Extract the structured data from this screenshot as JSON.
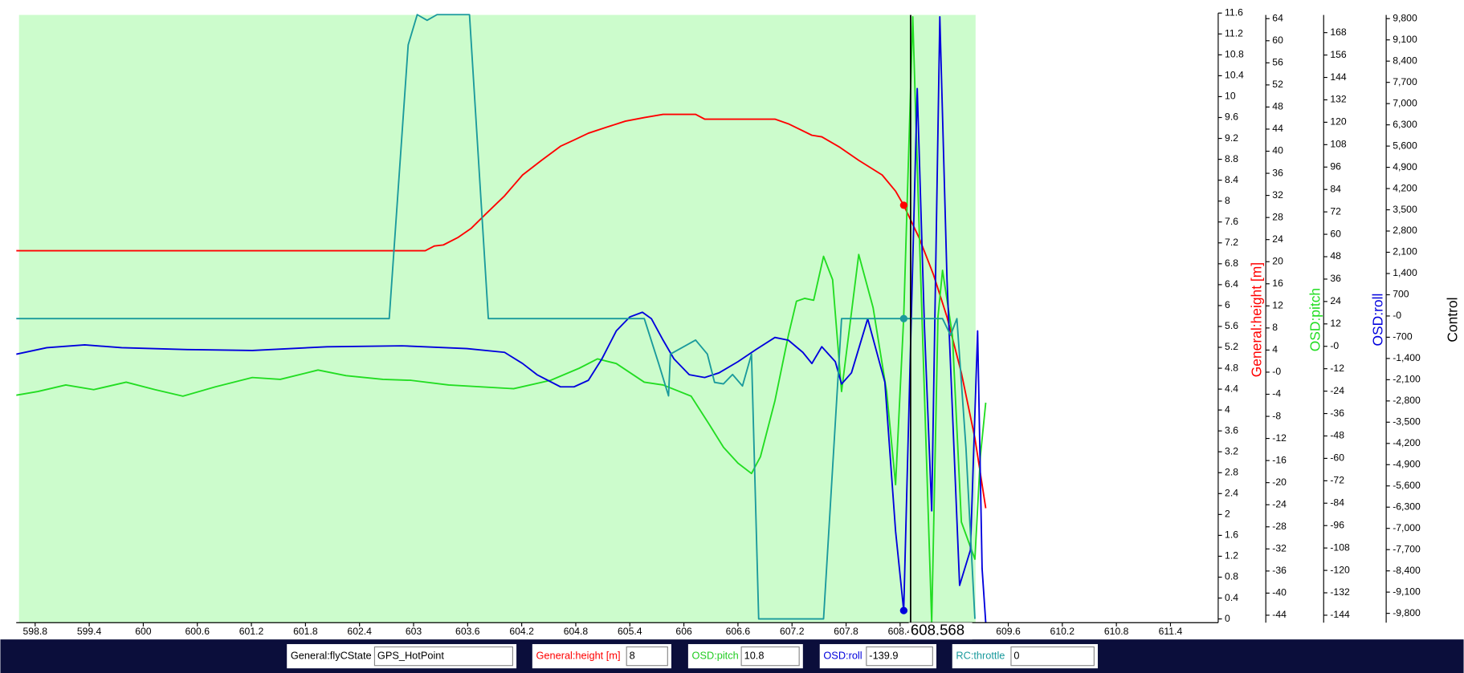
{
  "chart_data": {
    "type": "line",
    "xlim": [
      598.59,
      611.93
    ],
    "xticks": [
      598.8,
      599.4,
      600,
      600.6,
      601.2,
      601.8,
      602.4,
      603,
      603.6,
      604.2,
      604.8,
      605.4,
      606,
      606.6,
      607.2,
      607.8,
      608.4,
      609,
      609.6,
      610.2,
      610.8,
      611.4
    ],
    "cursor": 608.568,
    "axes": [
      {
        "color": "#000000",
        "lim": [
          0,
          11.6
        ],
        "ticks": [
          0,
          0.4,
          0.8,
          1.2,
          1.6,
          2,
          2.4,
          2.8,
          3.2,
          3.6,
          4,
          4.4,
          4.8,
          5.2,
          5.6,
          6,
          6.4,
          6.8,
          7.2,
          7.6,
          8,
          8.4,
          8.8,
          9.2,
          9.6,
          10,
          10.4,
          10.8,
          11.2,
          11.6
        ]
      },
      {
        "label": "General:height [m]",
        "color": "#ff0000",
        "lim": [
          -44,
          64
        ],
        "ticks": [
          -44,
          -40,
          -36,
          -32,
          -28,
          -24,
          -20,
          -16,
          -12,
          -8,
          -4,
          {
            "value": 0,
            "label": "-0"
          },
          4,
          8,
          12,
          16,
          20,
          24,
          28,
          32,
          36,
          40,
          44,
          48,
          52,
          56,
          60,
          64
        ]
      },
      {
        "label": "OSD:pitch",
        "color": "#22dd22",
        "lim": [
          -144,
          168
        ],
        "ticks": [
          -144,
          -132,
          -120,
          -108,
          -96,
          -84,
          -72,
          -60,
          -48,
          -36,
          -24,
          -12,
          {
            "value": 0,
            "label": "-0"
          },
          12,
          24,
          36,
          48,
          60,
          72,
          84,
          96,
          108,
          120,
          132,
          144,
          156,
          168
        ]
      },
      {
        "label": "OSD:roll",
        "color": "#0000dd",
        "lim": [
          -9800,
          9800
        ],
        "ticks": [
          {
            "value": -9800,
            "label": "-9,800"
          },
          {
            "value": -9100,
            "label": "-9,100"
          },
          {
            "value": -8400,
            "label": "-8,400"
          },
          {
            "value": -7700,
            "label": "-7,700"
          },
          {
            "value": -7000,
            "label": "-7,000"
          },
          {
            "value": -6300,
            "label": "-6,300"
          },
          {
            "value": -5600,
            "label": "-5,600"
          },
          {
            "value": -4900,
            "label": "-4,900"
          },
          {
            "value": -4200,
            "label": "-4,200"
          },
          {
            "value": -3500,
            "label": "-3,500"
          },
          {
            "value": -2800,
            "label": "-2,800"
          },
          {
            "value": -2100,
            "label": "-2,100"
          },
          {
            "value": -1400,
            "label": "-1,400"
          },
          -700,
          {
            "value": 0,
            "label": "-0"
          },
          700,
          {
            "value": 1400,
            "label": "1,400"
          },
          {
            "value": 2100,
            "label": "2,100"
          },
          {
            "value": 2800,
            "label": "2,800"
          },
          {
            "value": 3500,
            "label": "3,500"
          },
          {
            "value": 4200,
            "label": "4,200"
          },
          {
            "value": 4900,
            "label": "4,900"
          },
          {
            "value": 5600,
            "label": "5,600"
          },
          {
            "value": 6300,
            "label": "6,300"
          },
          {
            "value": 7000,
            "label": "7,000"
          },
          {
            "value": 7700,
            "label": "7,700"
          },
          {
            "value": 8400,
            "label": "8,400"
          },
          {
            "value": 9100,
            "label": "9,100"
          },
          {
            "value": 9800,
            "label": "9,800"
          }
        ]
      },
      {
        "label": "Control",
        "color": "#000000"
      }
    ],
    "series": [
      {
        "name": "General:height [m]",
        "color": "#ff0000",
        "axis": 0,
        "marker": true,
        "readout": 8,
        "x": [
          598.59,
          603.13,
          603.23,
          603.33,
          603.49,
          603.64,
          603.8,
          604.01,
          604.21,
          604.42,
          604.63,
          604.78,
          604.94,
          605.15,
          605.35,
          605.56,
          605.77,
          606.13,
          606.23,
          607.01,
          607.16,
          607.42,
          607.53,
          607.73,
          607.94,
          608.2,
          608.35,
          608.44,
          608.61,
          608.77,
          608.92,
          609.08,
          609.23,
          609.35
        ],
        "values": [
          7.05,
          7.05,
          7.14,
          7.16,
          7.3,
          7.48,
          7.75,
          8.1,
          8.5,
          8.78,
          9.05,
          9.17,
          9.3,
          9.42,
          9.53,
          9.6,
          9.66,
          9.66,
          9.57,
          9.57,
          9.48,
          9.26,
          9.23,
          9.03,
          8.78,
          8.5,
          8.19,
          7.92,
          7.3,
          6.59,
          5.78,
          4.71,
          3.46,
          2.12
        ]
      },
      {
        "name": "OSD:pitch",
        "color": "#22dd22",
        "axis": 2,
        "marker": false,
        "readout": 10.8,
        "x": [
          598.59,
          598.83,
          599.14,
          599.45,
          599.81,
          600.13,
          600.44,
          600.8,
          601.21,
          601.52,
          601.94,
          602.25,
          602.66,
          602.97,
          603.39,
          604.11,
          604.52,
          604.84,
          605.04,
          605.25,
          605.56,
          605.77,
          606.08,
          606.28,
          606.44,
          606.6,
          606.75,
          606.85,
          607.01,
          607.16,
          607.25,
          607.34,
          607.44,
          607.55,
          607.65,
          607.75,
          607.94,
          608.1,
          608.25,
          608.35,
          608.44,
          608.54,
          608.61,
          608.75,
          608.82,
          608.87,
          608.98,
          609.08,
          609.23,
          609.29,
          609.35
        ],
        "values": [
          -26.2,
          -24.2,
          -20.7,
          -23.2,
          -19.2,
          -23.2,
          -26.7,
          -21.7,
          -16.7,
          -17.7,
          -12.7,
          -15.7,
          -17.7,
          -18.2,
          -20.7,
          -22.7,
          -18.2,
          -11.7,
          -6.7,
          -9.2,
          -19.2,
          -20.7,
          -26.7,
          -41.7,
          -54.1,
          -62.6,
          -68.1,
          -59.1,
          -29.2,
          5.8,
          24.2,
          25.7,
          24.7,
          48.2,
          35.7,
          -24.2,
          49.2,
          20.7,
          -24.2,
          -74.1,
          15.7,
          176.5,
          65.7,
          -148,
          15.7,
          40.7,
          5.8,
          -94.1,
          -114,
          -59.1,
          -30.2
        ]
      },
      {
        "name": "OSD:roll",
        "color": "#0000dd",
        "axis": 3,
        "marker": true,
        "readout": -139.9,
        "x": [
          598.59,
          598.93,
          599.35,
          599.76,
          600.49,
          601.21,
          602.04,
          602.87,
          603.59,
          604.01,
          604.21,
          604.37,
          604.63,
          604.78,
          604.94,
          605.09,
          605.25,
          605.4,
          605.54,
          605.64,
          605.77,
          605.89,
          606.06,
          606.23,
          606.39,
          606.6,
          606.8,
          607.01,
          607.16,
          607.32,
          607.42,
          607.53,
          607.68,
          607.75,
          607.86,
          608.04,
          608.23,
          608.35,
          608.44,
          608.59,
          608.67,
          608.75,
          608.84,
          608.92,
          609.06,
          609.18,
          609.26,
          609.31,
          609.35
        ],
        "values": [
          -1259,
          -1044,
          -952,
          -1044,
          -1106,
          -1136,
          -1013,
          -983,
          -1075,
          -1198,
          -1566,
          -1935,
          -2334,
          -2334,
          -2119,
          -1413,
          -491,
          -30,
          123,
          -92,
          -799,
          -1413,
          -1935,
          -2027,
          -1874,
          -1505,
          -1106,
          -706,
          -799,
          -1198,
          -1566,
          -1013,
          -1505,
          -2242,
          -1874,
          -92,
          -2181,
          -7096,
          -9707,
          7496,
          -338,
          -6420,
          9861,
          1198,
          -8878,
          -7710,
          -491,
          -8325,
          -10107
        ]
      },
      {
        "name": "RC:throttle",
        "color": "#1a9a9c",
        "axis": 0,
        "marker": true,
        "readout": 0,
        "x": [
          598.59,
          602.73,
          602.94,
          603.04,
          603.15,
          603.26,
          603.62,
          603.83,
          605.56,
          605.72,
          605.83,
          605.85,
          606.13,
          606.26,
          606.34,
          606.44,
          606.54,
          606.65,
          606.75,
          606.83,
          607.55,
          607.75,
          608.44,
          608.87,
          608.96,
          609.03,
          609.13,
          609.23
        ],
        "values": [
          5.75,
          5.75,
          10.99,
          11.57,
          11.46,
          11.57,
          11.57,
          5.75,
          5.75,
          4.89,
          4.27,
          5.07,
          5.34,
          5.07,
          4.53,
          4.5,
          4.68,
          4.46,
          5.07,
          0,
          0,
          5.75,
          5.75,
          5.75,
          5.43,
          5.75,
          3.28,
          0
        ]
      }
    ]
  },
  "status": {
    "label": "General:flyCState",
    "value": "GPS_HotPoint"
  }
}
